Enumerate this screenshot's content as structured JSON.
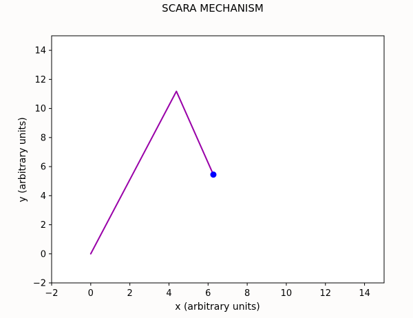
{
  "chart_data": {
    "type": "line",
    "title": "SCARA MECHANISM",
    "xlabel": "x (arbitrary units)",
    "ylabel": "y (arbitrary units)",
    "xlim": [
      -2,
      15
    ],
    "ylim": [
      -2,
      15
    ],
    "xticks": [
      -2,
      0,
      2,
      4,
      6,
      8,
      10,
      12,
      14
    ],
    "yticks": [
      -2,
      0,
      2,
      4,
      6,
      8,
      10,
      12,
      14
    ],
    "grid": false,
    "series": [
      {
        "type": "line",
        "x": [
          0,
          4.38,
          6.27
        ],
        "y": [
          0,
          11.18,
          5.45
        ],
        "color": "#9900a8"
      },
      {
        "type": "scatter",
        "x": [
          6.27
        ],
        "y": [
          5.45
        ],
        "color": "#0000ff"
      }
    ]
  }
}
